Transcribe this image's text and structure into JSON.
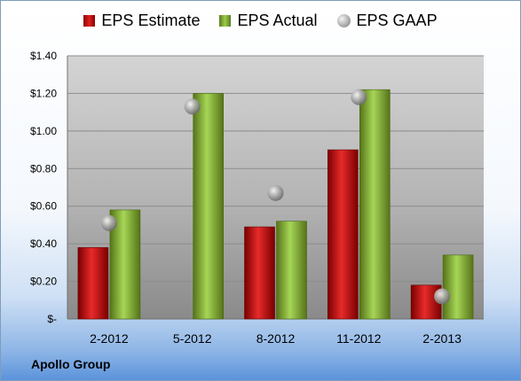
{
  "chart_data": {
    "type": "bar",
    "categories": [
      "2-2012",
      "5-2012",
      "8-2012",
      "11-2012",
      "2-2013"
    ],
    "series": [
      {
        "name": "EPS Estimate",
        "kind": "bar",
        "color": "#cc1111",
        "values": [
          0.38,
          null,
          0.49,
          0.9,
          0.18
        ]
      },
      {
        "name": "EPS Actual",
        "kind": "bar",
        "color": "#86b33b",
        "values": [
          0.58,
          1.2,
          0.52,
          1.22,
          0.34
        ]
      },
      {
        "name": "EPS GAAP",
        "kind": "marker",
        "color": "#a8a8a8",
        "values": [
          0.51,
          1.13,
          0.67,
          1.18,
          0.12
        ]
      }
    ],
    "yticks": [
      {
        "value": 0,
        "label": "$-"
      },
      {
        "value": 0.2,
        "label": "$0.20"
      },
      {
        "value": 0.4,
        "label": "$0.40"
      },
      {
        "value": 0.6,
        "label": "$0.60"
      },
      {
        "value": 0.8,
        "label": "$0.80"
      },
      {
        "value": 1.0,
        "label": "$1.00"
      },
      {
        "value": 1.2,
        "label": "$1.20"
      },
      {
        "value": 1.4,
        "label": "$1.40"
      }
    ],
    "ylim": [
      0,
      1.4
    ],
    "grid": true,
    "legend_position": "top"
  },
  "footer": {
    "company": "Apollo Group"
  }
}
